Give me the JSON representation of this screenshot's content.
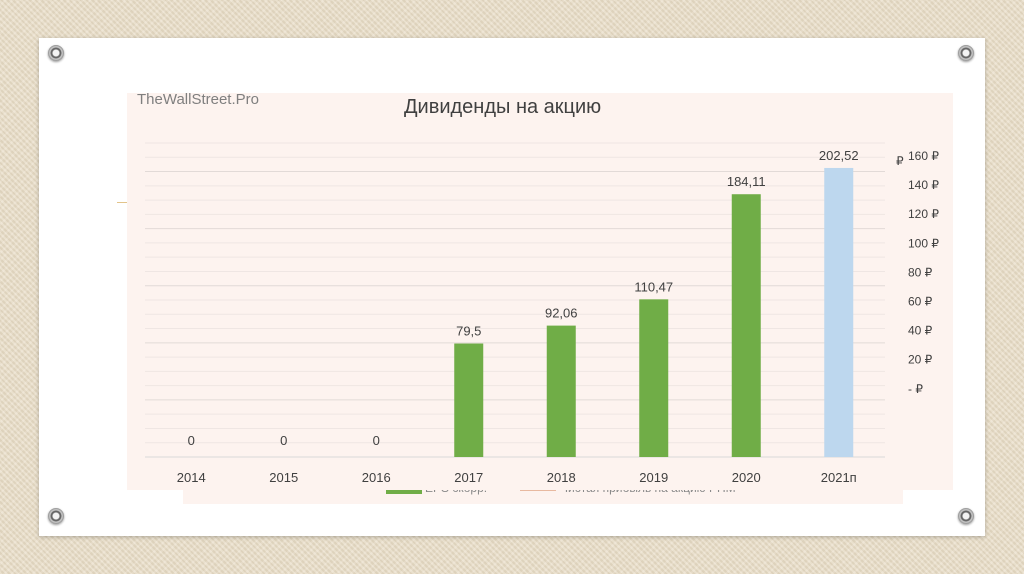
{
  "watermark": "TheWallStreet.Pro",
  "chart_data": {
    "type": "bar",
    "title": "Дивиденды на акцию",
    "categories": [
      "2014",
      "2015",
      "2016",
      "2017",
      "2018",
      "2019",
      "2020",
      "2021п"
    ],
    "series": [
      {
        "values": [
          0,
          0,
          0,
          79.5,
          92.06,
          110.47,
          184.11,
          202.52
        ]
      }
    ],
    "data_labels": [
      "0",
      "0",
      "0",
      "79,5",
      "92,06",
      "110,47",
      "184,11",
      "202,52"
    ],
    "bar_colors": [
      "#70ad47",
      "#70ad47",
      "#70ad47",
      "#70ad47",
      "#70ad47",
      "#70ad47",
      "#70ad47",
      "#bdd7ee"
    ],
    "bar_scale_max": 220,
    "right_axis": {
      "unit_label": "₽",
      "ticks": [
        160,
        140,
        120,
        100,
        80,
        60,
        40,
        20,
        0
      ],
      "tick_labels": [
        "160 ₽",
        "140 ₽",
        "120 ₽",
        "100 ₽",
        "80 ₽",
        "60 ₽",
        "40 ₽",
        "20 ₽",
        "-   ₽"
      ]
    },
    "grid": true
  },
  "legend": {
    "items": [
      {
        "label": "EPS скорр.",
        "color": "#70ad47"
      },
      {
        "label": "Чистая прибыль  на акцию РПМ",
        "color": "#e8b9a0"
      }
    ]
  },
  "colors": {
    "bar_actual": "#70ad47",
    "bar_forecast": "#bdd7ee",
    "panel": "#fdf3ef"
  }
}
